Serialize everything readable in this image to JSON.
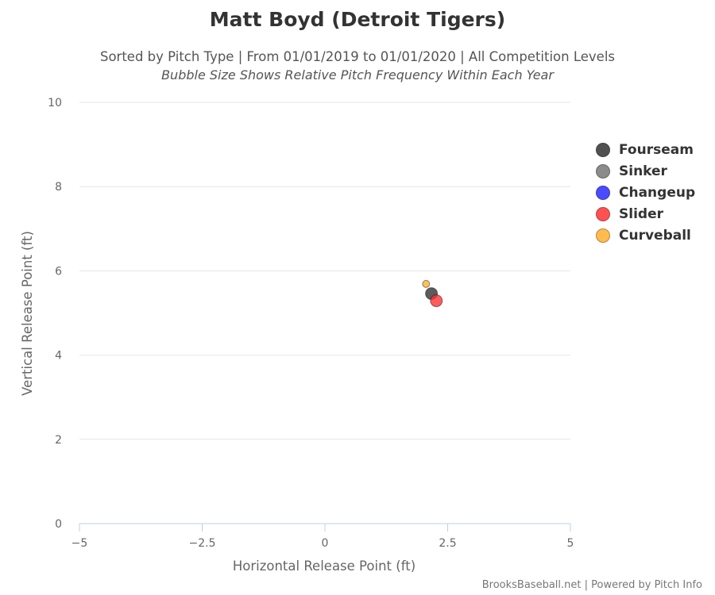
{
  "title": "Matt Boyd (Detroit Tigers)",
  "subtitle": "Sorted by Pitch Type | From 01/01/2019 to 01/01/2020 | All Competition Levels",
  "subtitle2": "Bubble Size Shows Relative Pitch Frequency Within Each Year",
  "credits": "BrooksBaseball.net | Powered by Pitch Info",
  "chart_data": {
    "type": "scatter",
    "title": "Matt Boyd (Detroit Tigers)",
    "xlabel": "Horizontal Release Point (ft)",
    "ylabel": "Vertical Release Point (ft)",
    "xlim": [
      -5,
      5
    ],
    "ylim": [
      0,
      10
    ],
    "xticks": [
      "−5",
      "−2.5",
      "0",
      "2.5",
      "5"
    ],
    "xtick_values": [
      -5,
      -2.5,
      0,
      2.5,
      5
    ],
    "yticks": [
      "0",
      "2",
      "4",
      "6",
      "8",
      "10"
    ],
    "ytick_values": [
      0,
      2,
      4,
      6,
      8,
      10
    ],
    "grid": true,
    "legend_position": "right",
    "series": [
      {
        "name": "Fourseam",
        "color": "#333333",
        "points": [
          {
            "x": 2.17,
            "y": 5.46,
            "relative_frequency": 0.5
          }
        ]
      },
      {
        "name": "Sinker",
        "color": "#777777",
        "points": []
      },
      {
        "name": "Changeup",
        "color": "#2b2bff",
        "points": []
      },
      {
        "name": "Slider",
        "color": "#ff3333",
        "points": [
          {
            "x": 2.27,
            "y": 5.29,
            "relative_frequency": 0.5
          }
        ]
      },
      {
        "name": "Curveball",
        "color": "#ffb02e",
        "points": [
          {
            "x": 2.06,
            "y": 5.69,
            "relative_frequency": 0.12
          }
        ]
      }
    ]
  }
}
